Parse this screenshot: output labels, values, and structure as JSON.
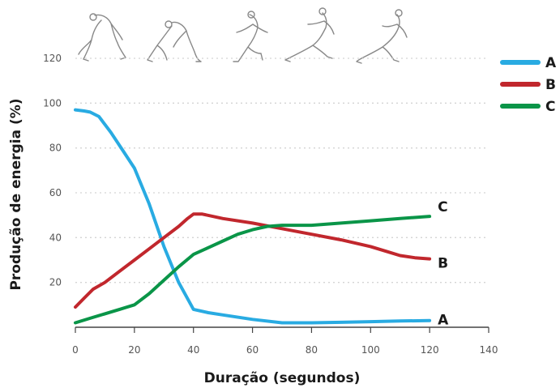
{
  "chart_data": {
    "type": "line",
    "xlabel": "Duração (segundos)",
    "ylabel": "Produção de energia (%)",
    "xlim": [
      0,
      140
    ],
    "ylim": [
      0,
      120
    ],
    "xticks": [
      0,
      20,
      40,
      60,
      80,
      100,
      120,
      140
    ],
    "yticks": [
      20,
      40,
      60,
      80,
      100,
      120
    ],
    "grid": "horizontal dotted",
    "legend_position": "top-right",
    "series": [
      {
        "name": "A",
        "color": "#29abe2",
        "x": [
          0,
          3,
          5,
          8,
          12,
          16,
          20,
          25,
          30,
          35,
          40,
          45,
          50,
          60,
          70,
          80,
          90,
          100,
          110,
          120
        ],
        "y": [
          97,
          96.5,
          96,
          94,
          87,
          79,
          71,
          55,
          36,
          20,
          8,
          6.5,
          5.5,
          3.5,
          2,
          2,
          2.2,
          2.5,
          2.8,
          3
        ]
      },
      {
        "name": "B",
        "color": "#c1272d",
        "x": [
          0,
          3,
          6,
          10,
          15,
          20,
          25,
          30,
          35,
          38,
          40,
          43,
          50,
          60,
          70,
          80,
          90,
          100,
          105,
          110,
          115,
          120
        ],
        "y": [
          9,
          13,
          17,
          20,
          25,
          30,
          35,
          40,
          45,
          48.5,
          50.5,
          50.5,
          48.5,
          46.5,
          44,
          41.5,
          39,
          36,
          34,
          32,
          31,
          30.5
        ]
      },
      {
        "name": "C",
        "color": "#0a9548",
        "x": [
          0,
          5,
          10,
          15,
          20,
          25,
          30,
          35,
          40,
          45,
          50,
          55,
          60,
          65,
          70,
          80,
          90,
          100,
          110,
          120
        ],
        "y": [
          2,
          4,
          6,
          8,
          10,
          15,
          21,
          27,
          32.5,
          35.5,
          38.5,
          41.5,
          43.5,
          45,
          45.5,
          45.5,
          46.5,
          47.5,
          48.5,
          49.5
        ]
      }
    ],
    "end_labels": [
      "C",
      "B",
      "A"
    ]
  },
  "legend": [
    {
      "label": "A",
      "color": "#29abe2"
    },
    {
      "label": "B",
      "color": "#c1272d"
    },
    {
      "label": "C",
      "color": "#0a9548"
    }
  ],
  "figures": [
    "sprinter-crouch-icon",
    "sprinter-set-icon",
    "sprinter-push-off-icon",
    "sprinter-drive-icon",
    "sprinter-running-icon"
  ]
}
